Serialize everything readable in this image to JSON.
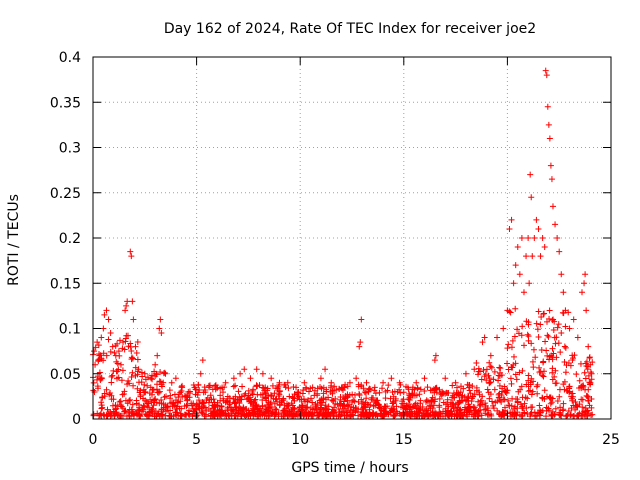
{
  "chart_data": {
    "type": "scatter",
    "title": "Day 162 of 2024, Rate Of TEC Index for receiver joe2",
    "xlabel": "GPS time / hours",
    "ylabel": "ROTI / TECUs",
    "xlim": [
      0,
      25
    ],
    "ylim": [
      0,
      0.4
    ],
    "xticks": [
      0,
      5,
      10,
      15,
      20,
      25
    ],
    "xtick_labels": [
      "0",
      "5",
      "10",
      "15",
      "20",
      "25"
    ],
    "yticks": [
      0,
      0.05,
      0.1,
      0.15,
      0.2,
      0.25,
      0.3,
      0.35,
      0.4
    ],
    "ytick_labels": [
      "0",
      "0.05",
      "0.1",
      "0.15",
      "0.2",
      "0.25",
      "0.3",
      "0.35",
      "0.4"
    ],
    "grid": true,
    "marker": "+",
    "series_color": "#ff0000",
    "series": [
      {
        "name": "ROTI",
        "points": [
          [
            0.05,
            0.075
          ],
          [
            0.1,
            0.06
          ],
          [
            0.2,
            0.085
          ],
          [
            0.3,
            0.07
          ],
          [
            0.4,
            0.09
          ],
          [
            0.5,
            0.1
          ],
          [
            0.55,
            0.115
          ],
          [
            0.65,
            0.12
          ],
          [
            0.75,
            0.11
          ],
          [
            0.85,
            0.095
          ],
          [
            0.95,
            0.08
          ],
          [
            1.1,
            0.07
          ],
          [
            1.25,
            0.075
          ],
          [
            1.35,
            0.06
          ],
          [
            1.45,
            0.085
          ],
          [
            1.55,
            0.12
          ],
          [
            1.6,
            0.125
          ],
          [
            1.65,
            0.13
          ],
          [
            1.8,
            0.185
          ],
          [
            1.85,
            0.18
          ],
          [
            1.9,
            0.13
          ],
          [
            1.95,
            0.11
          ],
          [
            2.05,
            0.08
          ],
          [
            2.2,
            0.055
          ],
          [
            2.5,
            0.05
          ],
          [
            2.8,
            0.045
          ],
          [
            3.0,
            0.06
          ],
          [
            3.1,
            0.07
          ],
          [
            3.2,
            0.1
          ],
          [
            3.25,
            0.11
          ],
          [
            3.3,
            0.095
          ],
          [
            3.5,
            0.05
          ],
          [
            3.8,
            0.04
          ],
          [
            4.0,
            0.045
          ],
          [
            4.3,
            0.035
          ],
          [
            4.6,
            0.03
          ],
          [
            4.9,
            0.035
          ],
          [
            5.2,
            0.05
          ],
          [
            5.3,
            0.065
          ],
          [
            5.6,
            0.035
          ],
          [
            6.0,
            0.035
          ],
          [
            6.4,
            0.04
          ],
          [
            6.8,
            0.045
          ],
          [
            7.1,
            0.05
          ],
          [
            7.3,
            0.055
          ],
          [
            7.6,
            0.045
          ],
          [
            7.9,
            0.055
          ],
          [
            8.2,
            0.05
          ],
          [
            8.6,
            0.045
          ],
          [
            9.0,
            0.04
          ],
          [
            9.4,
            0.04
          ],
          [
            9.8,
            0.035
          ],
          [
            10.2,
            0.04
          ],
          [
            10.6,
            0.035
          ],
          [
            11.0,
            0.045
          ],
          [
            11.2,
            0.055
          ],
          [
            11.5,
            0.04
          ],
          [
            12.0,
            0.035
          ],
          [
            12.4,
            0.04
          ],
          [
            12.7,
            0.045
          ],
          [
            12.85,
            0.08
          ],
          [
            12.9,
            0.085
          ],
          [
            12.95,
            0.11
          ],
          [
            13.2,
            0.04
          ],
          [
            13.6,
            0.035
          ],
          [
            14.0,
            0.04
          ],
          [
            14.4,
            0.045
          ],
          [
            14.8,
            0.04
          ],
          [
            15.2,
            0.035
          ],
          [
            15.6,
            0.04
          ],
          [
            16.0,
            0.045
          ],
          [
            16.5,
            0.065
          ],
          [
            16.55,
            0.07
          ],
          [
            17.0,
            0.045
          ],
          [
            17.5,
            0.04
          ],
          [
            18.0,
            0.05
          ],
          [
            18.4,
            0.055
          ],
          [
            18.8,
            0.085
          ],
          [
            18.9,
            0.09
          ],
          [
            19.2,
            0.07
          ],
          [
            19.5,
            0.09
          ],
          [
            19.8,
            0.1
          ],
          [
            20.0,
            0.12
          ],
          [
            20.1,
            0.21
          ],
          [
            20.2,
            0.22
          ],
          [
            20.3,
            0.15
          ],
          [
            20.4,
            0.17
          ],
          [
            20.5,
            0.19
          ],
          [
            20.6,
            0.16
          ],
          [
            20.7,
            0.2
          ],
          [
            20.8,
            0.14
          ],
          [
            20.9,
            0.18
          ],
          [
            21.0,
            0.2
          ],
          [
            21.05,
            0.15
          ],
          [
            21.1,
            0.27
          ],
          [
            21.15,
            0.245
          ],
          [
            21.2,
            0.18
          ],
          [
            21.3,
            0.2
          ],
          [
            21.4,
            0.22
          ],
          [
            21.5,
            0.21
          ],
          [
            21.6,
            0.18
          ],
          [
            21.7,
            0.2
          ],
          [
            21.8,
            0.19
          ],
          [
            21.85,
            0.385
          ],
          [
            21.9,
            0.38
          ],
          [
            21.95,
            0.345
          ],
          [
            22.0,
            0.325
          ],
          [
            22.05,
            0.31
          ],
          [
            22.1,
            0.28
          ],
          [
            22.15,
            0.265
          ],
          [
            22.2,
            0.235
          ],
          [
            22.3,
            0.215
          ],
          [
            22.4,
            0.2
          ],
          [
            22.5,
            0.185
          ],
          [
            22.6,
            0.16
          ],
          [
            22.7,
            0.14
          ],
          [
            22.8,
            0.12
          ],
          [
            23.0,
            0.1
          ],
          [
            23.2,
            0.11
          ],
          [
            23.4,
            0.09
          ],
          [
            23.6,
            0.14
          ],
          [
            23.7,
            0.15
          ],
          [
            23.75,
            0.16
          ],
          [
            23.8,
            0.12
          ],
          [
            23.9,
            0.08
          ],
          [
            24.0,
            0.06
          ]
        ]
      }
    ]
  }
}
